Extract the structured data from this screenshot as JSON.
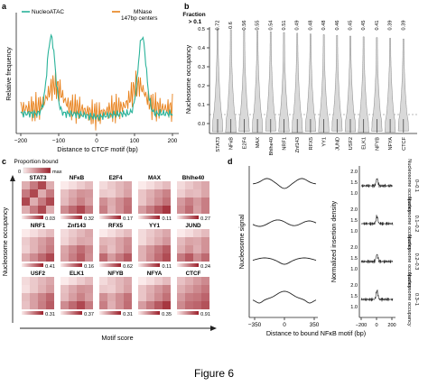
{
  "figure_caption": "Figure 6",
  "panel_a": {
    "label": "a",
    "legend": [
      "NucleoATAC",
      "MNase",
      "147bp centers"
    ],
    "ylabel": "Relative frequency",
    "xlabel": "Distance to CTCF motif (bp)",
    "xticks": [
      "−200",
      "−100",
      "0",
      "100",
      "200"
    ],
    "colors": {
      "nucleoatac": "#2ab39a",
      "mnase": "#e8801a"
    }
  },
  "panel_b": {
    "label": "b",
    "fraction_label": "Fraction",
    "fraction_threshold": "> 0.1",
    "fractions": [
      "0.72",
      "0.6",
      "0.56",
      "0.55",
      "0.54",
      "0.51",
      "0.49",
      "0.48",
      "0.48",
      "0.46",
      "0.45",
      "0.45",
      "0.41",
      "0.39",
      "0.39"
    ],
    "factors": [
      "STAT3",
      "NFκB",
      "E2F4",
      "MAX",
      "Bhlhe40",
      "NRF1",
      "Znf143",
      "RFX5",
      "YY1",
      "JUND",
      "USF2",
      "ELK1",
      "NFYB",
      "NFYA",
      "CTCF"
    ],
    "ylabel": "Nucleosome occupancy",
    "yticks": [
      "0.0",
      "0.1",
      "0.2",
      "0.3",
      "0.4",
      "0.5"
    ]
  },
  "panel_c": {
    "label": "c",
    "legend_title": "Proportion bound",
    "legend_min": "0",
    "legend_max": "max",
    "ylabel": "Nucleosome occupancy",
    "xlabel": "Motif score",
    "tiles": [
      {
        "name": "STAT3",
        "max": "0.03"
      },
      {
        "name": "NFκB",
        "max": "0.32"
      },
      {
        "name": "E2F4",
        "max": "0.17"
      },
      {
        "name": "MAX",
        "max": "0.11"
      },
      {
        "name": "Bhlhe40",
        "max": "0.27"
      },
      {
        "name": "NRF1",
        "max": "0.41"
      },
      {
        "name": "Znf143",
        "max": "0.16"
      },
      {
        "name": "RFX5",
        "max": "0.62"
      },
      {
        "name": "YY1",
        "max": "0.11"
      },
      {
        "name": "JUND",
        "max": "0.24"
      },
      {
        "name": "USF2",
        "max": "0.31"
      },
      {
        "name": "ELK1",
        "max": "0.37"
      },
      {
        "name": "NFYB",
        "max": "0.31"
      },
      {
        "name": "NFYA",
        "max": "0.35"
      },
      {
        "name": "CTCF",
        "max": "0.91"
      }
    ]
  },
  "panel_d": {
    "label": "d",
    "left_ylabel": "Nucleosome signal",
    "right_ylabel": "Normalized insertion density",
    "xlabel": "Distance to bound NFκB motif (bp)",
    "left_xticks": [
      "−350",
      "0",
      "350"
    ],
    "right_xticks": [
      "−200",
      "0",
      "200"
    ],
    "right_yticks": [
      "1.0",
      "1.5",
      "2.0"
    ],
    "occupancy_prefix": "Nucleosome occupancy",
    "occupancy_ranges": [
      "0–0.1",
      "0.1–0.2",
      "0.2–0.3",
      "0.3–1"
    ]
  }
}
